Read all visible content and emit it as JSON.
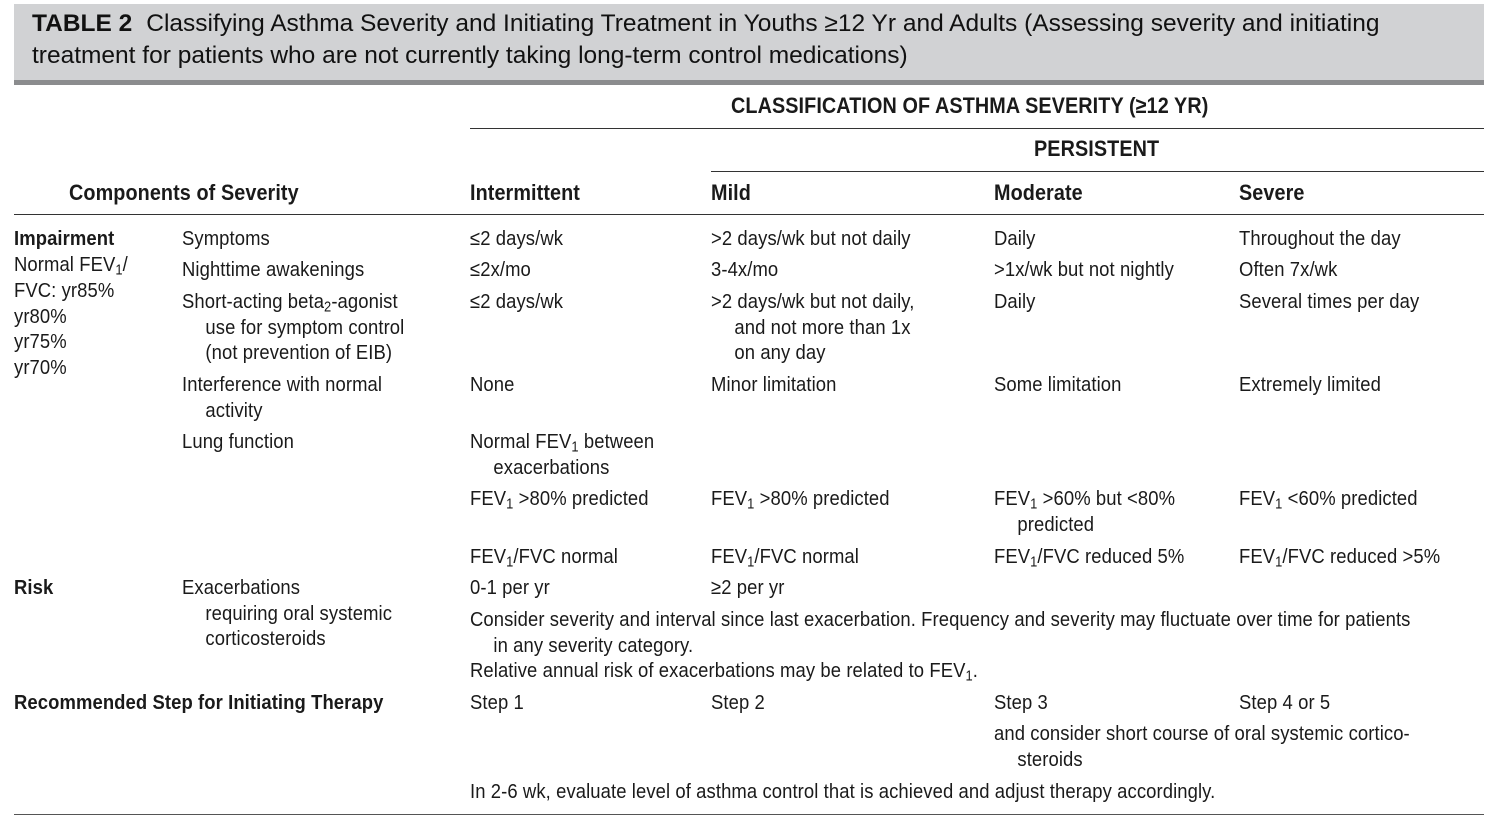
{
  "caption": {
    "label": "TABLE 2",
    "title": "Classifying Asthma Severity and Initiating Treatment in Youths ≥12 Yr and Adults (Assessing severity and initiating treatment for patients who are not currently taking long-term control medications)"
  },
  "headers": {
    "classification": "CLASSIFICATION OF ASTHMA SEVERITY (≥12 YR)",
    "persistent": "PERSISTENT",
    "components": "Components of Severity",
    "intermittent": "Intermittent",
    "mild": "Mild",
    "moderate": "Moderate",
    "severe": "Severe"
  },
  "impairment": {
    "title": "Impairment",
    "normal_line1": "Normal FEV",
    "sub_1": "1",
    "normal_line1_end": "/",
    "normal_line2": "FVC: yr85%",
    "age_lines": [
      "yr80%",
      "yr75%",
      "yr70%"
    ],
    "symptoms": {
      "label": "Symptoms",
      "intermittent": "≤2 days/wk",
      "mild": ">2 days/wk but not daily",
      "moderate": "Daily",
      "severe": "Throughout the day"
    },
    "nighttime": {
      "label": "Nighttime awakenings",
      "intermittent": "≤2x/mo",
      "mild": "3-4x/mo",
      "moderate": ">1x/wk but not nightly",
      "severe": "Often 7x/wk"
    },
    "saba": {
      "label_pre": "Short-acting beta",
      "label_sub": "2",
      "label_post": "-agonist",
      "label_line2": "use for symptom control",
      "label_line3": "(not prevention of EIB)",
      "intermittent": "≤2 days/wk",
      "mild_line1": ">2 days/wk but not daily,",
      "mild_line2": "and not more than 1x",
      "mild_line3": "on any day",
      "moderate": "Daily",
      "severe": "Several times per day"
    },
    "interference": {
      "label_line1": "Interference with normal",
      "label_line2": "activity",
      "intermittent": "None",
      "mild": "Minor limitation",
      "moderate": "Some limitation",
      "severe": "Extremely limited"
    },
    "lung": {
      "label": "Lung function",
      "normal_pre": "Normal FEV",
      "normal_post": " between",
      "normal_line2": "exacerbations",
      "fev1_word": "FEV",
      "int_fev": " >80% predicted",
      "mild_fev": " >80% predicted",
      "mod_fev_line1": " >60% but <80%",
      "mod_fev_line2": "predicted",
      "sev_fev": " <60% predicted",
      "ratio_mid": "/FVC",
      "int_ratio": " normal",
      "mild_ratio": " normal",
      "mod_ratio": " reduced 5%",
      "sev_ratio": " reduced >5%"
    }
  },
  "risk": {
    "title": "Risk",
    "label_line1": "Exacerbations",
    "label_line2": "requiring oral systemic",
    "label_line3": "corticosteroids",
    "intermittent": "0-1 per yr",
    "persistent": "≥2 per yr",
    "note_line1": "Consider severity and interval since last exacerbation. Frequency and severity may fluctuate over time for patients",
    "note_line2": "in any severity category.",
    "note_line3_pre": "Relative annual risk of exacerbations may be related to FEV",
    "note_line3_post": "."
  },
  "recommended": {
    "title": "Recommended Step for Initiating Therapy",
    "intermittent": "Step 1",
    "mild": "Step 2",
    "moderate": "Step 3",
    "severe": "Step 4 or 5",
    "steroid_line1": "and consider short course of oral systemic cortico-",
    "steroid_line2": "steroids",
    "followup": "In 2-6 wk, evaluate level of asthma control that is achieved and adjust therapy accordingly."
  }
}
